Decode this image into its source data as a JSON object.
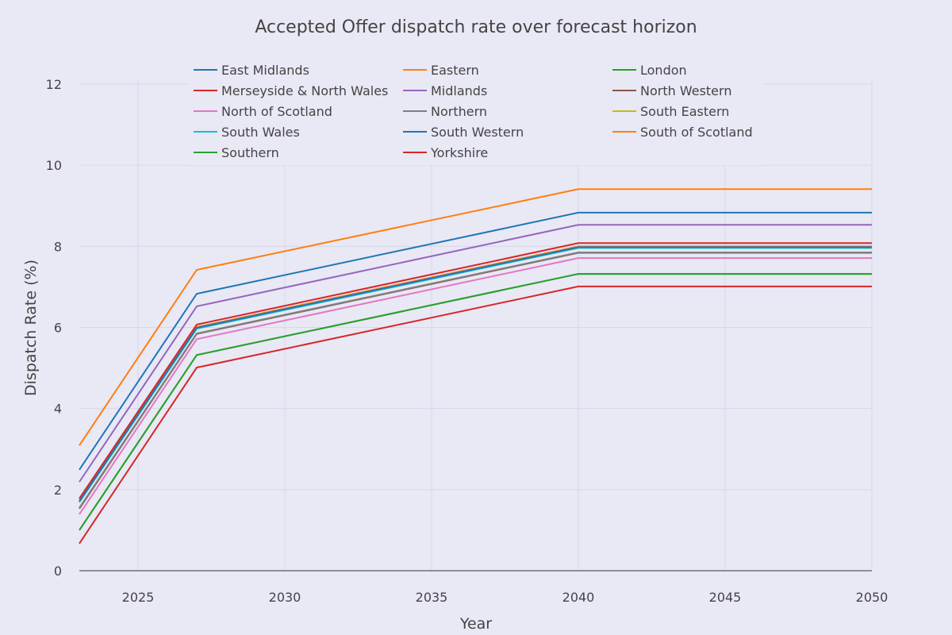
{
  "chart_data": {
    "type": "line",
    "title": "Accepted Offer dispatch rate over forecast horizon",
    "xlabel": "Year",
    "ylabel": "Dispatch Rate (%)",
    "xlim": [
      2023,
      2050
    ],
    "ylim": [
      0,
      12
    ],
    "xticks": [
      2025,
      2030,
      2035,
      2040,
      2045,
      2050
    ],
    "yticks": [
      0,
      2,
      4,
      6,
      8,
      10,
      12
    ],
    "grid": true,
    "legend_position": "top",
    "x": [
      2023,
      2027,
      2040,
      2050
    ],
    "series": [
      {
        "name": "East Midlands",
        "color": "#1f77b4",
        "values": [
          2.49,
          6.83,
          8.83,
          8.83
        ]
      },
      {
        "name": "Eastern",
        "color": "#ff7f0e",
        "values": [
          1.74,
          6.01,
          8.0,
          8.0
        ]
      },
      {
        "name": "London",
        "color": "#2ca02c",
        "values": [
          1.0,
          5.32,
          7.32,
          7.32
        ]
      },
      {
        "name": "Merseyside & North Wales",
        "color": "#d62728",
        "values": [
          1.78,
          6.07,
          8.08,
          8.08
        ]
      },
      {
        "name": "Midlands",
        "color": "#9467bd",
        "values": [
          2.19,
          6.52,
          8.53,
          8.53
        ]
      },
      {
        "name": "North Western",
        "color": "#8c564b",
        "values": [
          1.53,
          5.84,
          7.84,
          7.84
        ]
      },
      {
        "name": "North of Scotland",
        "color": "#e377c2",
        "values": [
          1.39,
          5.71,
          7.71,
          7.71
        ]
      },
      {
        "name": "Northern",
        "color": "#7f7f7f",
        "values": [
          1.55,
          5.85,
          7.85,
          7.85
        ]
      },
      {
        "name": "South Eastern",
        "color": "#bcbd22",
        "values": [
          1.7,
          5.98,
          7.97,
          7.97
        ]
      },
      {
        "name": "South Wales",
        "color": "#17becf",
        "values": [
          1.69,
          5.97,
          7.96,
          7.96
        ]
      },
      {
        "name": "South Western",
        "color": "#1f77b4",
        "values": [
          1.71,
          5.99,
          7.98,
          7.98
        ]
      },
      {
        "name": "South of Scotland",
        "color": "#ff7f0e",
        "values": [
          3.09,
          7.42,
          9.41,
          9.41
        ]
      },
      {
        "name": "Southern",
        "color": "#2ca02c",
        "values": [
          1.0,
          5.32,
          7.32,
          7.32
        ]
      },
      {
        "name": "Yorkshire",
        "color": "#d62728",
        "values": [
          0.67,
          5.01,
          7.01,
          7.01
        ]
      }
    ]
  }
}
